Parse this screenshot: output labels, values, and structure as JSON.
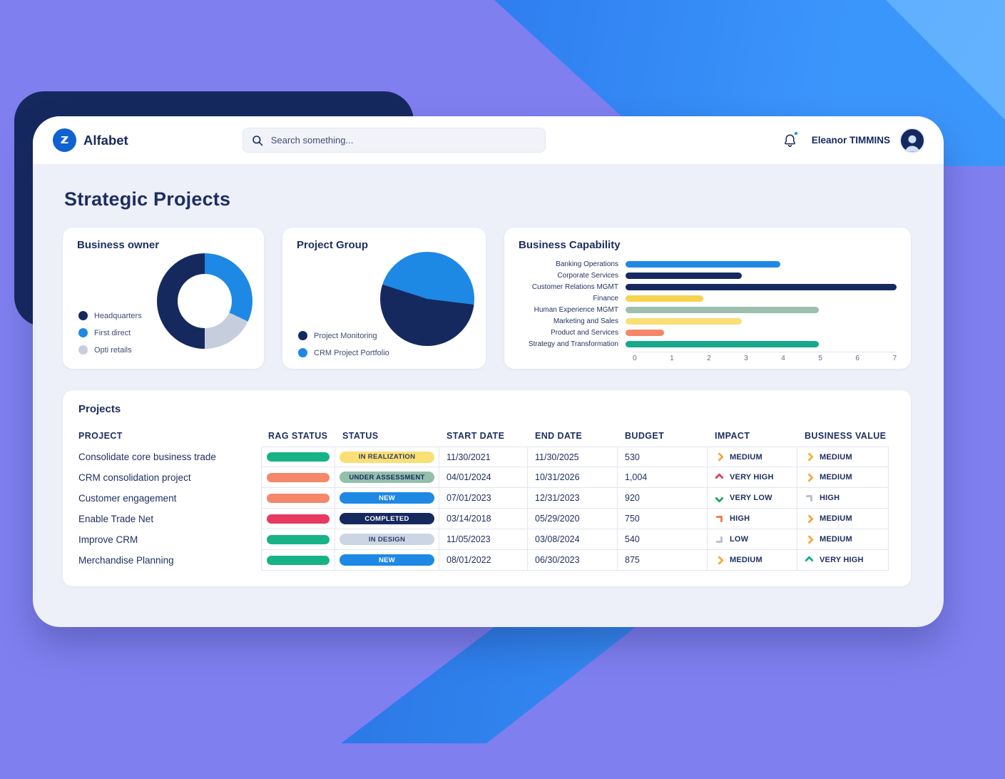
{
  "colors": {
    "accent_blue": "#1e88e5",
    "navy": "#16295f",
    "background_purple": "#7f7ff0",
    "content_bg": "#edeff9"
  },
  "header": {
    "brand": "Alfabet",
    "logo_letter": "Z",
    "search_placeholder": "Search something...",
    "user_name": "Eleanor TIMMINS"
  },
  "page_title": "Strategic Projects",
  "panels": {
    "business_owner": {
      "title": "Business owner"
    },
    "project_group": {
      "title": "Project Group"
    },
    "business_capability": {
      "title": "Business Capability"
    },
    "projects": {
      "title": "Projects"
    }
  },
  "chart_data": [
    {
      "type": "pie",
      "variant": "donut",
      "title": "Business owner",
      "labels": [
        "Headquarters",
        "First direct",
        "Opti retails"
      ],
      "values": [
        50,
        32,
        18
      ],
      "colors": [
        "#16295f",
        "#1e88e5",
        "#c6cede"
      ],
      "legend_position": "left",
      "start_angle_deg": 180
    },
    {
      "type": "pie",
      "title": "Project Group",
      "labels": [
        "Project Monitoring",
        "CRM Project Portfolio"
      ],
      "values": [
        53,
        47
      ],
      "colors": [
        "#16295f",
        "#1e88e5"
      ],
      "legend_position": "left",
      "start_angle_deg": 97
    },
    {
      "type": "bar",
      "orientation": "horizontal",
      "title": "Business Capability",
      "categories": [
        "Banking Operations",
        "Corporate Services",
        "Customer Relations MGMT",
        "Finance",
        "Human Experience MGMT",
        "Marketing and Sales",
        "Product and Services",
        "Strategy and Transformation"
      ],
      "values": [
        4,
        3,
        7,
        2,
        5,
        3,
        1,
        5
      ],
      "colors": [
        "#1e88e5",
        "#16295f",
        "#16295f",
        "#f8d34f",
        "#9cc0ad",
        "#fadf75",
        "#f5876a",
        "#16a98b"
      ],
      "xlabel": "",
      "ylabel": "",
      "xlim": [
        0,
        7
      ],
      "x_ticks": [
        0,
        1,
        2,
        3,
        4,
        5,
        6,
        7
      ],
      "grid": false
    }
  ],
  "projects_table": {
    "columns": [
      "PROJECT",
      "RAG STATUS",
      "STATUS",
      "START DATE",
      "END DATE",
      "BUDGET",
      "IMPACT",
      "BUSINESS VALUE"
    ],
    "rows": [
      {
        "project": "Consolidate core business trade",
        "rag_color": "#18b287",
        "status": {
          "label": "IN REALIZATION",
          "bg": "#fadf75",
          "fg": "#2c3e66"
        },
        "start_date": "11/30/2021",
        "end_date": "11/30/2025",
        "budget": "530",
        "impact": {
          "label": "MEDIUM",
          "direction": "right",
          "color": "#f6a73b"
        },
        "business_value": {
          "label": "MEDIUM",
          "direction": "right",
          "color": "#f0b42c"
        }
      },
      {
        "project": "CRM consolidation project",
        "rag_color": "#f5876a",
        "status": {
          "label": "UNDER ASSESSMENT",
          "bg": "#93bfab",
          "fg": "#16295f"
        },
        "start_date": "04/01/2024",
        "end_date": "10/31/2026",
        "budget": "1,004",
        "impact": {
          "label": "VERY HIGH",
          "direction": "up",
          "color": "#e8395f"
        },
        "business_value": {
          "label": "MEDIUM",
          "direction": "right",
          "color": "#f6a73b"
        }
      },
      {
        "project": "Customer engagement",
        "rag_color": "#f5876a",
        "status": {
          "label": "NEW",
          "bg": "#1e88e5",
          "fg": "#ffffff"
        },
        "start_date": "07/01/2023",
        "end_date": "12/31/2023",
        "budget": "920",
        "impact": {
          "label": "VERY LOW",
          "direction": "down",
          "color": "#1ea55f"
        },
        "business_value": {
          "label": "HIGH",
          "direction": "up-right",
          "color": "#b9c2d0"
        }
      },
      {
        "project": "Enable Trade Net",
        "rag_color": "#e8395f",
        "status": {
          "label": "COMPLETED",
          "bg": "#16295f",
          "fg": "#ffffff"
        },
        "start_date": "03/14/2018",
        "end_date": "05/29/2020",
        "budget": "750",
        "impact": {
          "label": "HIGH",
          "direction": "up-right",
          "color": "#f28050"
        },
        "business_value": {
          "label": "MEDIUM",
          "direction": "right",
          "color": "#f6a73b"
        }
      },
      {
        "project": "Improve CRM",
        "rag_color": "#18b287",
        "status": {
          "label": "IN DESIGN",
          "bg": "#ccd5e3",
          "fg": "#2c3e66"
        },
        "start_date": "11/05/2023",
        "end_date": "03/08/2024",
        "budget": "540",
        "impact": {
          "label": "LOW",
          "direction": "down-right",
          "color": "#b9c2d0"
        },
        "business_value": {
          "label": "MEDIUM",
          "direction": "right",
          "color": "#f6a73b"
        }
      },
      {
        "project": "Merchandise Planning",
        "rag_color": "#18b287",
        "status": {
          "label": "NEW",
          "bg": "#1e88e5",
          "fg": "#ffffff"
        },
        "start_date": "08/01/2022",
        "end_date": "06/30/2023",
        "budget": "875",
        "impact": {
          "label": "MEDIUM",
          "direction": "right",
          "color": "#f6a73b"
        },
        "business_value": {
          "label": "VERY HIGH",
          "direction": "up",
          "color": "#16a98b"
        }
      }
    ]
  }
}
